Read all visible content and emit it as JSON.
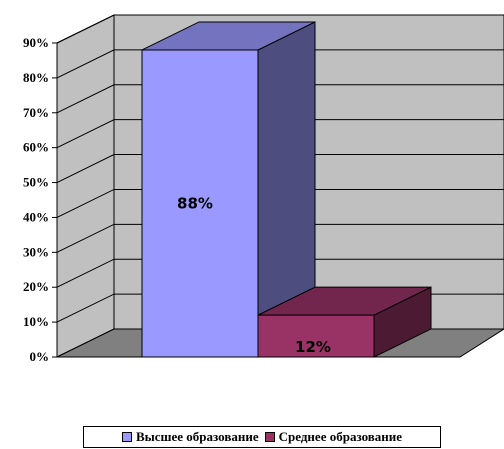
{
  "chart_data": {
    "type": "bar",
    "categories": [
      ""
    ],
    "series": [
      {
        "name": "Высшее образование",
        "values": [
          88
        ],
        "label": "88%",
        "color": "#9999ff"
      },
      {
        "name": "Среднее образование",
        "values": [
          12
        ],
        "label": "12%",
        "color": "#993366"
      }
    ],
    "ylim": [
      0,
      90
    ],
    "yticks": [
      "0%",
      "10%",
      "20%",
      "30%",
      "40%",
      "50%",
      "60%",
      "70%",
      "80%",
      "90%"
    ],
    "grid": true,
    "legend": "bottom",
    "style": "3d"
  }
}
